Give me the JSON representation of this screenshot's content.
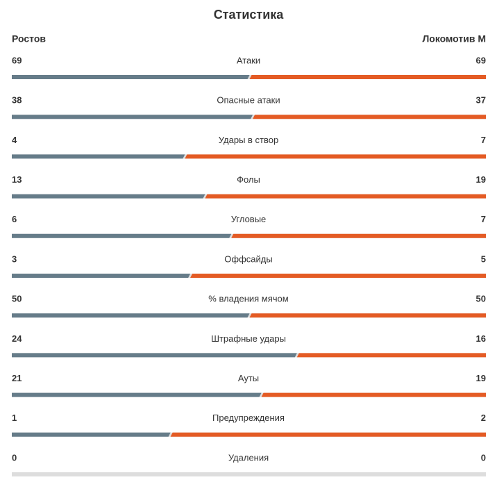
{
  "title": "Статистика",
  "teams": {
    "home": {
      "name": "Ростов",
      "color": "#667c89"
    },
    "away": {
      "name": "Локомотив М",
      "color": "#e45b24"
    }
  },
  "stats": [
    {
      "label": "Атаки",
      "home": 69,
      "away": 69
    },
    {
      "label": "Опасные атаки",
      "home": 38,
      "away": 37
    },
    {
      "label": "Удары в створ",
      "home": 4,
      "away": 7
    },
    {
      "label": "Фолы",
      "home": 13,
      "away": 19
    },
    {
      "label": "Угловые",
      "home": 6,
      "away": 7
    },
    {
      "label": "Оффсайды",
      "home": 3,
      "away": 5
    },
    {
      "label": "% владения мячом",
      "home": 50,
      "away": 50
    },
    {
      "label": "Штрафные удары",
      "home": 24,
      "away": 16
    },
    {
      "label": "Ауты",
      "home": 21,
      "away": 19
    },
    {
      "label": "Предупреждения",
      "home": 1,
      "away": 2
    },
    {
      "label": "Удаления",
      "home": 0,
      "away": 0
    }
  ]
}
